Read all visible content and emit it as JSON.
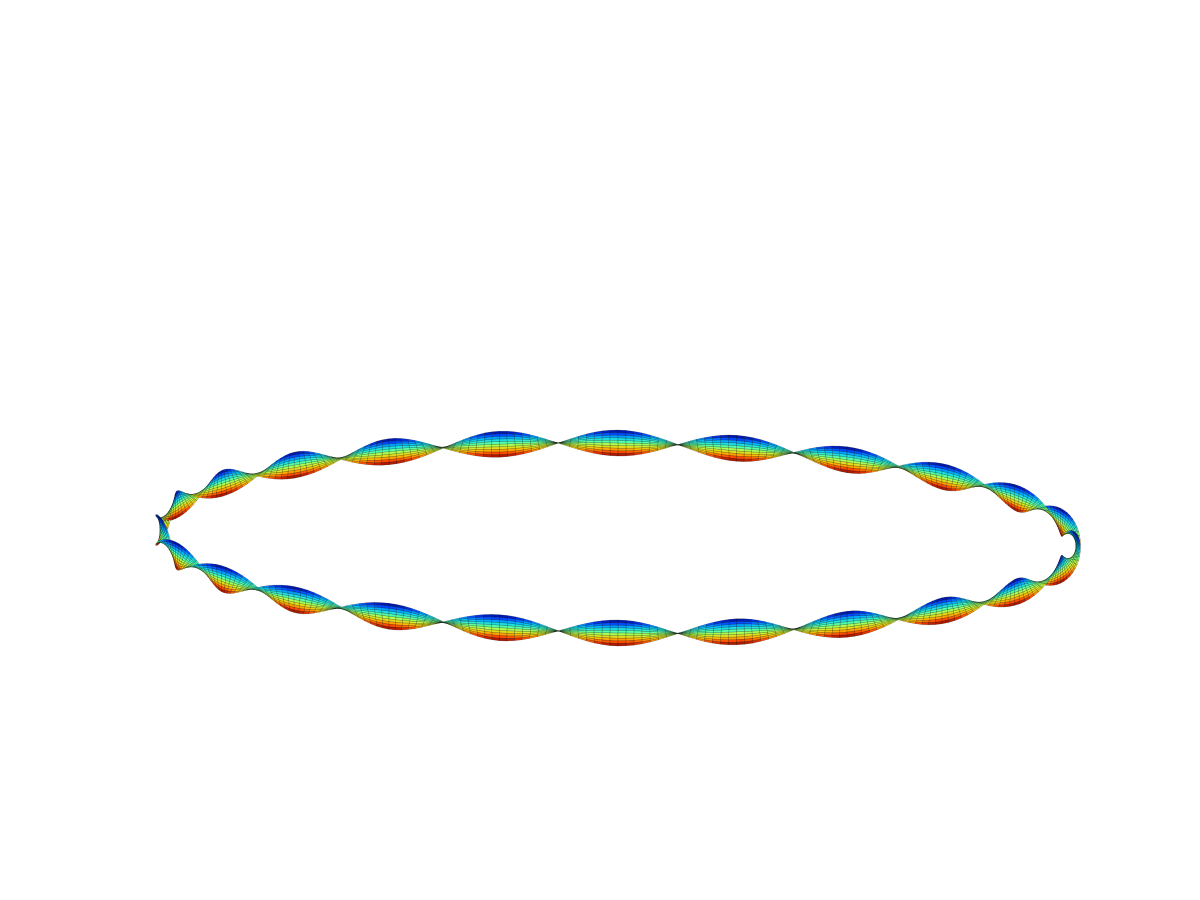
{
  "chart_data": {
    "type": "surface3d",
    "title": "",
    "xlabel": "",
    "ylabel": "",
    "zlabel": "",
    "axes_visible": false,
    "grid": false,
    "legend": "none",
    "colormap": [
      "#00007f",
      "#0040ff",
      "#00bfff",
      "#40ffbf",
      "#bfff40",
      "#ffbf00",
      "#ff4000",
      "#7f0000"
    ],
    "mesh_edge_color": "#000000",
    "shape": "twisted closed ribbon (Möbius-like band) seen from a low oblique angle",
    "parametrization": {
      "u_range": [
        0,
        6.2832
      ],
      "v_range": [
        -1,
        1
      ],
      "u_samples": 360,
      "v_samples": 10,
      "twist_frequency": 12
    }
  }
}
